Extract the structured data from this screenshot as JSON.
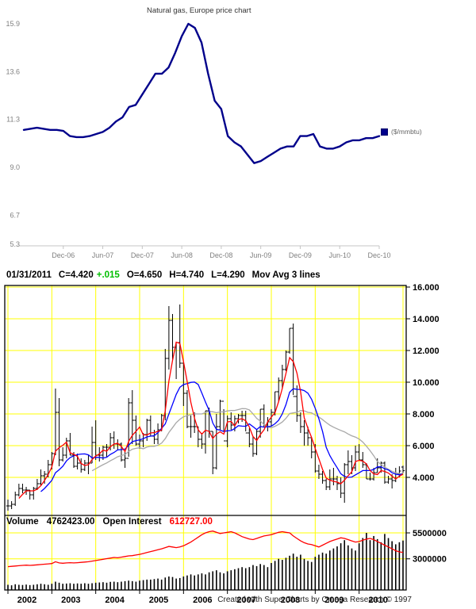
{
  "colors": {
    "line_navy": "#00008b",
    "grid_yellow": "#ffff00",
    "ma_red": "#ff0000",
    "ma_blue": "#0000ff",
    "ma_gray": "#a8a8a8",
    "change_green": "#00bf00",
    "oi_red": "#ff0000"
  },
  "top_chart": {
    "title": "Natural gas, Europe price chart",
    "legend_label": "($/mmbtu)"
  },
  "bottom_chart": {
    "quote_bar": {
      "date": "01/31/2011",
      "close": "C=4.420",
      "change": "+.015",
      "open": "O=4.650",
      "high": "H=4.740",
      "low": "L=4.290",
      "study": "Mov Avg 3 lines"
    },
    "volume_bar": {
      "volume_label": "Volume",
      "volume_value": "4762423.00",
      "oi_label": "Open Interest",
      "oi_value": "612727.00"
    },
    "footer": "Created with SuperCharts by Omega Research © 1997"
  },
  "chart_data": [
    {
      "type": "line",
      "title": "Natural gas, Europe price chart",
      "series_name": "($/mmbtu)",
      "x_start": "Jun-06",
      "x_interval": "monthly",
      "line_color": "#00008b",
      "ylim": [
        5.3,
        15.9
      ],
      "y_ticks": [
        15.9,
        13.6,
        11.3,
        9.0,
        6.7,
        5.3
      ],
      "x_ticks": [
        {
          "label": "Dec-06",
          "i": 6
        },
        {
          "label": "Jun-07",
          "i": 12
        },
        {
          "label": "Dec-07",
          "i": 18
        },
        {
          "label": "Jun-08",
          "i": 24
        },
        {
          "label": "Dec-08",
          "i": 30
        },
        {
          "label": "Jun-09",
          "i": 36
        },
        {
          "label": "Dec-09",
          "i": 42
        },
        {
          "label": "Jun-10",
          "i": 48
        },
        {
          "label": "Dec-10",
          "i": 54
        }
      ],
      "values": [
        10.8,
        10.85,
        10.9,
        10.85,
        10.8,
        10.8,
        10.75,
        10.5,
        10.45,
        10.45,
        10.5,
        10.6,
        10.7,
        10.9,
        11.2,
        11.4,
        11.9,
        12.0,
        12.5,
        13.0,
        13.5,
        13.5,
        13.8,
        14.5,
        15.3,
        15.9,
        15.7,
        15.0,
        13.5,
        12.2,
        11.8,
        10.5,
        10.2,
        10.0,
        9.6,
        9.2,
        9.3,
        9.5,
        9.7,
        9.9,
        10.0,
        10.0,
        10.5,
        10.5,
        10.6,
        10.0,
        9.9,
        9.9,
        10.0,
        10.2,
        10.3,
        10.3,
        10.4,
        10.4,
        10.5
      ],
      "grid": false,
      "legend_position": "right"
    },
    {
      "type": "bar",
      "subtype": "ohlc_with_volume_and_open_interest",
      "last_bar": {
        "date": "01/31/2011",
        "open": 4.65,
        "high": 4.74,
        "low": 4.29,
        "close": 4.42,
        "change": 0.015
      },
      "studies": [
        "Mov Avg 3 lines"
      ],
      "x_start": "Jan-2002",
      "x_interval": "monthly",
      "year_grid_step": 12,
      "x_ticks": [
        {
          "label": "2002",
          "i": 0
        },
        {
          "label": "2003",
          "i": 12
        },
        {
          "label": "2004",
          "i": 24
        },
        {
          "label": "2005",
          "i": 36
        },
        {
          "label": "2006",
          "i": 48
        },
        {
          "label": "2007",
          "i": 60
        },
        {
          "label": "2008",
          "i": 72
        },
        {
          "label": "2009",
          "i": 84
        },
        {
          "label": "2010",
          "i": 96
        }
      ],
      "ylim": [
        1.7,
        16.1
      ],
      "y_ticks": [
        16,
        14,
        12,
        10,
        8,
        6,
        4
      ],
      "grid_color": "#ffff00",
      "bar_color": "#000000",
      "mov_avg_windows": [
        4,
        10,
        24
      ],
      "mov_avg_colors": [
        "#ff0000",
        "#0000ff",
        "#a8a8a8"
      ],
      "high": [
        2.6,
        2.5,
        3.1,
        3.6,
        3.6,
        3.4,
        3.2,
        3.4,
        3.9,
        4.5,
        4.4,
        5.1,
        5.6,
        9.6,
        9.0,
        5.9,
        6.5,
        6.8,
        5.6,
        5.5,
        5.2,
        5.1,
        5.4,
        7.2,
        7.6,
        5.9,
        6.0,
        6.1,
        6.8,
        6.9,
        6.4,
        6.2,
        5.6,
        9.0,
        9.5,
        7.9,
        6.7,
        6.8,
        7.7,
        7.9,
        7.0,
        7.4,
        8.0,
        12.1,
        14.8,
        14.3,
        12.5,
        14.9,
        11.2,
        9.5,
        7.9,
        8.1,
        7.2,
        6.8,
        8.2,
        8.4,
        6.9,
        8.0,
        8.9,
        8.3,
        7.9,
        8.1,
        7.9,
        8.0,
        8.2,
        8.2,
        7.1,
        6.6,
        7.0,
        8.3,
        8.6,
        7.8,
        8.3,
        9.4,
        10.3,
        11.1,
        12.0,
        13.4,
        13.7,
        9.8,
        8.1,
        7.6,
        7.2,
        6.5,
        6.1,
        4.8,
        4.4,
        3.9,
        4.5,
        4.6,
        4.1,
        4.0,
        4.9,
        5.7,
        5.4,
        6.0,
        6.1,
        5.6,
        4.9,
        4.3,
        4.6,
        5.2,
        5.0,
        5.0,
        4.1,
        4.2,
        4.6,
        4.7,
        4.74
      ],
      "low": [
        1.9,
        2.0,
        2.2,
        2.8,
        3.0,
        2.9,
        2.6,
        2.6,
        3.2,
        3.5,
        3.6,
        4.0,
        4.5,
        5.4,
        4.7,
        5.0,
        5.2,
        5.4,
        4.6,
        4.5,
        4.3,
        4.4,
        4.2,
        4.9,
        5.1,
        5.0,
        5.1,
        5.3,
        5.7,
        5.8,
        5.7,
        5.0,
        4.6,
        5.3,
        6.1,
        6.0,
        5.8,
        5.9,
        6.3,
        6.6,
        6.1,
        6.1,
        6.9,
        7.6,
        10.8,
        11.4,
        10.2,
        10.9,
        8.5,
        7.1,
        6.5,
        6.8,
        5.9,
        5.8,
        5.5,
        6.5,
        4.2,
        4.5,
        7.0,
        6.9,
        5.9,
        7.0,
        6.9,
        7.4,
        7.5,
        6.9,
        5.9,
        5.3,
        5.4,
        6.5,
        7.2,
        6.9,
        7.2,
        7.9,
        8.8,
        9.6,
        10.7,
        11.8,
        9.2,
        7.5,
        6.8,
        6.0,
        6.0,
        5.2,
        4.3,
        3.9,
        3.6,
        3.2,
        3.2,
        3.5,
        3.2,
        2.7,
        2.4,
        4.2,
        4.2,
        4.4,
        5.1,
        4.6,
        3.9,
        3.8,
        3.8,
        4.3,
        4.3,
        3.6,
        3.6,
        3.3,
        3.7,
        4.0,
        4.29
      ],
      "close": [
        2.2,
        2.3,
        2.9,
        3.3,
        3.2,
        3.2,
        2.9,
        3.3,
        3.6,
        4.1,
        4.2,
        4.8,
        5.5,
        8.1,
        5.1,
        5.4,
        6.3,
        5.4,
        4.7,
        4.9,
        4.5,
        4.9,
        4.9,
        6.2,
        5.4,
        5.4,
        5.9,
        5.9,
        6.5,
        6.1,
        6.1,
        5.1,
        5.2,
        8.7,
        7.6,
        6.1,
        6.3,
        6.7,
        7.6,
        6.6,
        6.4,
        7.0,
        7.9,
        11.5,
        13.9,
        12.2,
        12.5,
        11.2,
        9.3,
        7.2,
        7.2,
        7.2,
        6.4,
        6.1,
        8.2,
        6.9,
        4.6,
        7.2,
        8.8,
        6.3,
        7.7,
        7.3,
        7.7,
        7.9,
        7.9,
        6.8,
        6.1,
        5.5,
        6.9,
        8.3,
        7.3,
        7.5,
        8.1,
        9.4,
        10.1,
        10.8,
        11.9,
        13.4,
        9.1,
        7.9,
        7.2,
        6.8,
        6.5,
        5.6,
        4.4,
        4.2,
        3.8,
        3.4,
        3.9,
        3.9,
        3.6,
        3.0,
        4.8,
        5.0,
        4.6,
        5.6,
        5.1,
        4.8,
        3.9,
        3.9,
        4.3,
        4.6,
        4.9,
        3.7,
        3.9,
        3.8,
        4.2,
        4.4,
        4.42
      ],
      "last_open": 4.65,
      "volume_last": 4762423.0,
      "open_interest_last": 612727.0,
      "volume_ylim": [
        0,
        6800000
      ],
      "volume_ticks": [
        5500000,
        3000000
      ],
      "volume_color": "#000000",
      "volume": [
        500000,
        450000,
        550000,
        500000,
        480000,
        520000,
        470000,
        500000,
        550000,
        600000,
        550000,
        500000,
        600000,
        800000,
        700000,
        600000,
        620000,
        650000,
        600000,
        630000,
        600000,
        650000,
        600000,
        650000,
        700000,
        720000,
        750000,
        700000,
        780000,
        800000,
        750000,
        800000,
        850000,
        900000,
        850000,
        800000,
        900000,
        950000,
        1000000,
        1000000,
        1050000,
        1100000,
        1000000,
        1200000,
        1300000,
        1250000,
        1100000,
        1150000,
        1300000,
        1400000,
        1500000,
        1400000,
        1500000,
        1600000,
        1500000,
        1700000,
        1800000,
        1900000,
        1700000,
        1600000,
        1800000,
        1900000,
        2000000,
        2100000,
        2200000,
        2100000,
        2200000,
        2400000,
        2300000,
        2500000,
        2400000,
        2200000,
        2600000,
        2800000,
        3000000,
        2900000,
        3100000,
        3300000,
        3500000,
        3200000,
        3400000,
        3000000,
        2800000,
        2700000,
        3200000,
        3400000,
        3600000,
        3500000,
        3800000,
        4000000,
        4200000,
        4500000,
        4800000,
        4300000,
        4000000,
        3800000,
        4500000,
        5000000,
        5500000,
        4800000,
        5200000,
        4900000,
        4600000,
        5400000,
        5000000,
        4700000,
        4400000,
        4600000,
        4762423
      ],
      "oi_axis": "independent",
      "oi_ylim": [
        0,
        1150000
      ],
      "oi_color": "#ff0000",
      "open_interest": [
        380000,
        385000,
        390000,
        395000,
        400000,
        405000,
        400000,
        405000,
        410000,
        415000,
        420000,
        425000,
        430000,
        460000,
        440000,
        435000,
        440000,
        445000,
        440000,
        445000,
        450000,
        455000,
        460000,
        470000,
        480000,
        490000,
        500000,
        510000,
        520000,
        530000,
        525000,
        535000,
        545000,
        555000,
        560000,
        570000,
        580000,
        595000,
        610000,
        625000,
        640000,
        655000,
        670000,
        690000,
        710000,
        700000,
        690000,
        700000,
        720000,
        750000,
        780000,
        820000,
        860000,
        900000,
        930000,
        950000,
        960000,
        940000,
        920000,
        930000,
        940000,
        950000,
        930000,
        900000,
        870000,
        850000,
        830000,
        820000,
        840000,
        860000,
        880000,
        890000,
        900000,
        920000,
        940000,
        950000,
        940000,
        930000,
        880000,
        840000,
        800000,
        770000,
        750000,
        740000,
        720000,
        700000,
        730000,
        760000,
        790000,
        810000,
        830000,
        850000,
        840000,
        820000,
        800000,
        780000,
        790000,
        810000,
        830000,
        840000,
        820000,
        790000,
        760000,
        730000,
        700000,
        670000,
        640000,
        620000,
        612727
      ]
    }
  ]
}
